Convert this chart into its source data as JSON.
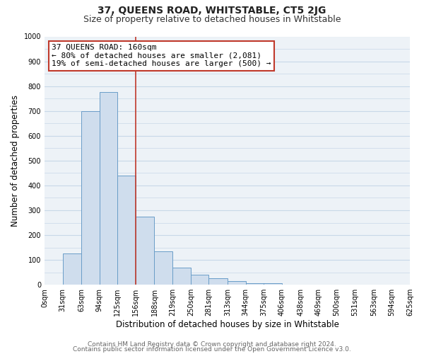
{
  "title": "37, QUEENS ROAD, WHITSTABLE, CT5 2JG",
  "subtitle": "Size of property relative to detached houses in Whitstable",
  "xlabel": "Distribution of detached houses by size in Whitstable",
  "ylabel": "Number of detached properties",
  "bar_color": "#cfdded",
  "bar_edge_color": "#6a9dc8",
  "background_color": "#edf2f7",
  "bin_edges": [
    0,
    31,
    63,
    94,
    125,
    156,
    188,
    219,
    250,
    281,
    313,
    344,
    375,
    406,
    438,
    469,
    500,
    531,
    563,
    594,
    625
  ],
  "bar_heights": [
    0,
    125,
    700,
    775,
    440,
    275,
    135,
    70,
    40,
    25,
    15,
    5,
    5,
    0,
    0,
    0,
    0,
    0,
    0,
    0
  ],
  "vline_x": 156,
  "vline_color": "#c0392b",
  "annotation_line1": "37 QUEENS ROAD: 160sqm",
  "annotation_line2": "← 80% of detached houses are smaller (2,081)",
  "annotation_line3": "19% of semi-detached houses are larger (500) →",
  "annotation_box_color": "#c0392b",
  "ylim": [
    0,
    1000
  ],
  "yticks": [
    0,
    100,
    200,
    300,
    400,
    500,
    600,
    700,
    800,
    900,
    1000
  ],
  "footer_line1": "Contains HM Land Registry data © Crown copyright and database right 2024.",
  "footer_line2": "Contains public sector information licensed under the Open Government Licence v3.0.",
  "grid_color": "#c8d8e8",
  "title_fontsize": 10,
  "subtitle_fontsize": 9,
  "axis_label_fontsize": 8.5,
  "tick_fontsize": 7,
  "annotation_fontsize": 8,
  "footer_fontsize": 6.5
}
